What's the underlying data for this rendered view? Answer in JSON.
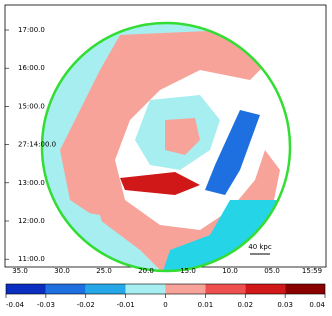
{
  "chart_data": {
    "type": "image",
    "ytick_labels": [
      "17:00.0",
      "16:00.0",
      "15:00.0",
      "27:14:00.0",
      "13:00.0",
      "12:00.0",
      "11:00.0"
    ],
    "xtick_labels": [
      "35.0",
      "30.0",
      "25.0",
      "20.0",
      "15.0",
      "10.0",
      "05.0",
      "15:59"
    ],
    "scale_bar_label": "40 kpc",
    "colorbar": {
      "lim": [
        -0.04,
        0.04
      ],
      "ticks": [
        -0.04,
        -0.03,
        -0.02,
        -0.01,
        0,
        0.01,
        0.02,
        0.03,
        0.04
      ],
      "colors": [
        "#0a2fc0",
        "#1e6fe0",
        "#26a8e8",
        "#a6eef0",
        "#f7a39a",
        "#ee5050",
        "#d01818",
        "#8a0000"
      ]
    },
    "disk_color": "#33dd33"
  }
}
